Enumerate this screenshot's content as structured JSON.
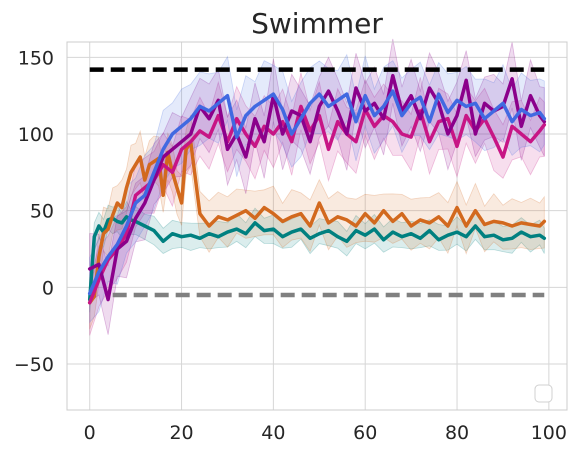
{
  "chart_data": {
    "type": "line",
    "title": "Swimmer",
    "xlabel": "",
    "ylabel": "",
    "xlim": [
      -4.95,
      103.95
    ],
    "ylim": [
      -80,
      160
    ],
    "xticks": [
      0,
      20,
      40,
      60,
      80,
      100
    ],
    "yticks": [
      -50,
      0,
      50,
      100,
      150
    ],
    "grid": true,
    "legend": {
      "placement": "lower-right",
      "entries": []
    },
    "reference_lines": [
      {
        "y": 142,
        "x": [
          0,
          99
        ],
        "color": "#000000",
        "style": "dashed"
      },
      {
        "y": -5,
        "x": [
          5,
          99
        ],
        "color": "#808080",
        "style": "dashed"
      }
    ],
    "series": [
      {
        "color": "#008080",
        "band": 10,
        "x": [
          0,
          1,
          2,
          3,
          4,
          5,
          6,
          7,
          8,
          9,
          10,
          12,
          14,
          16,
          18,
          20,
          22,
          24,
          26,
          28,
          30,
          32,
          34,
          36,
          38,
          40,
          42,
          44,
          46,
          48,
          50,
          52,
          54,
          56,
          58,
          60,
          62,
          64,
          66,
          68,
          70,
          72,
          74,
          76,
          78,
          80,
          82,
          84,
          86,
          88,
          90,
          92,
          94,
          96,
          98,
          99
        ],
        "values": [
          -8,
          33,
          40,
          36,
          44,
          45,
          43,
          42,
          46,
          44,
          43,
          40,
          37,
          30,
          35,
          33,
          34,
          32,
          35,
          33,
          36,
          38,
          35,
          42,
          37,
          38,
          33,
          36,
          38,
          32,
          35,
          37,
          33,
          30,
          37,
          34,
          38,
          31,
          36,
          33,
          35,
          32,
          37,
          31,
          34,
          36,
          33,
          40,
          33,
          34,
          31,
          32,
          36,
          33,
          34,
          32
        ]
      },
      {
        "color": "#d2691e",
        "band": 18,
        "x": [
          0,
          1,
          2,
          3,
          4,
          5,
          6,
          7,
          8,
          9,
          10,
          11,
          12,
          13,
          14,
          15,
          16,
          17,
          18,
          19,
          20,
          21,
          22,
          24,
          26,
          28,
          30,
          32,
          34,
          36,
          38,
          40,
          42,
          44,
          46,
          48,
          50,
          52,
          54,
          56,
          58,
          60,
          62,
          64,
          66,
          68,
          70,
          72,
          74,
          76,
          78,
          80,
          82,
          84,
          86,
          88,
          90,
          92,
          94,
          96,
          98,
          99
        ],
        "values": [
          -10,
          -6,
          20,
          35,
          38,
          47,
          55,
          52,
          65,
          75,
          80,
          85,
          70,
          80,
          82,
          84,
          60,
          88,
          75,
          65,
          55,
          90,
          95,
          48,
          40,
          46,
          44,
          47,
          50,
          45,
          52,
          48,
          43,
          46,
          48,
          40,
          55,
          42,
          46,
          44,
          40,
          48,
          42,
          50,
          43,
          48,
          40,
          44,
          42,
          46,
          40,
          52,
          40,
          50,
          41,
          43,
          42,
          40,
          42,
          41,
          40,
          43
        ]
      },
      {
        "color": "#c71585",
        "band": 22,
        "x": [
          0,
          2,
          4,
          6,
          8,
          10,
          12,
          14,
          16,
          18,
          20,
          22,
          24,
          26,
          28,
          30,
          32,
          34,
          36,
          38,
          40,
          42,
          44,
          46,
          48,
          50,
          52,
          54,
          56,
          58,
          60,
          62,
          64,
          66,
          68,
          70,
          72,
          74,
          76,
          78,
          80,
          82,
          84,
          86,
          88,
          90,
          92,
          94,
          96,
          98,
          99
        ],
        "values": [
          -10,
          5,
          18,
          25,
          35,
          60,
          65,
          70,
          80,
          75,
          90,
          95,
          102,
          98,
          112,
          95,
          110,
          100,
          92,
          105,
          100,
          108,
          95,
          118,
          102,
          112,
          90,
          108,
          100,
          95,
          116,
          105,
          112,
          108,
          100,
          98,
          115,
          95,
          108,
          110,
          92,
          112,
          102,
          110,
          98,
          85,
          105,
          100,
          95,
          102,
          106
        ]
      },
      {
        "color": "#8b008b",
        "band": 24,
        "x": [
          0,
          2,
          4,
          6,
          8,
          10,
          12,
          14,
          16,
          18,
          20,
          22,
          24,
          26,
          28,
          30,
          32,
          34,
          36,
          38,
          40,
          42,
          44,
          46,
          48,
          50,
          52,
          54,
          56,
          58,
          60,
          62,
          64,
          66,
          68,
          70,
          72,
          74,
          76,
          78,
          80,
          82,
          84,
          86,
          88,
          90,
          92,
          94,
          96,
          98,
          99
        ],
        "values": [
          12,
          15,
          -8,
          25,
          30,
          45,
          55,
          70,
          85,
          90,
          95,
          100,
          118,
          110,
          122,
          90,
          100,
          85,
          110,
          95,
          125,
          100,
          115,
          112,
          95,
          118,
          128,
          115,
          100,
          130,
          115,
          120,
          110,
          138,
          115,
          125,
          110,
          130,
          120,
          100,
          112,
          135,
          100,
          120,
          115,
          118,
          136,
          105,
          125,
          112,
          108
        ]
      },
      {
        "color": "#4169e1",
        "band": 26,
        "x": [
          0,
          2,
          4,
          6,
          8,
          10,
          12,
          14,
          16,
          18,
          20,
          22,
          24,
          26,
          28,
          30,
          32,
          34,
          36,
          38,
          40,
          42,
          44,
          46,
          48,
          50,
          52,
          54,
          56,
          58,
          60,
          62,
          64,
          66,
          68,
          70,
          72,
          74,
          76,
          78,
          80,
          82,
          84,
          86,
          88,
          90,
          92,
          94,
          96,
          98,
          99
        ],
        "values": [
          -4,
          10,
          20,
          28,
          40,
          55,
          60,
          75,
          90,
          100,
          105,
          110,
          118,
          115,
          120,
          125,
          98,
          112,
          118,
          122,
          126,
          116,
          100,
          110,
          120,
          126,
          118,
          122,
          126,
          108,
          125,
          112,
          118,
          128,
          112,
          120,
          124,
          108,
          126,
          114,
          122,
          118,
          120,
          110,
          115,
          120,
          108,
          116,
          112,
          114,
          110
        ]
      }
    ]
  }
}
